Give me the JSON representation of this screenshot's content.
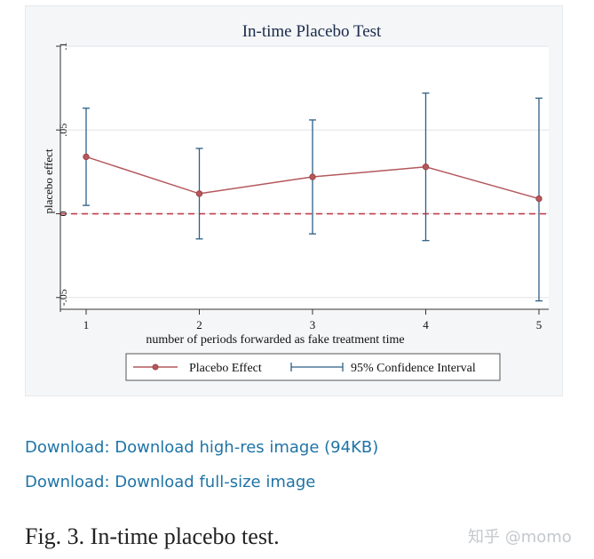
{
  "links": [
    {
      "label": "Download: Download high-res image (94KB)"
    },
    {
      "label": "Download: Download full-size image"
    }
  ],
  "caption": "Fig. 3. In-time placebo test.",
  "watermark": "知乎 @momo",
  "colors": {
    "line": "#b4585c",
    "ci": "#2c5f86",
    "zero_line": "#c43d4f",
    "link": "#1f74a6"
  },
  "chart_data": {
    "type": "line",
    "title": "In-time Placebo Test",
    "xlabel": "number of periods forwarded as fake treatment time",
    "ylabel": "placebo effect",
    "x": [
      1,
      2,
      3,
      4,
      5
    ],
    "x_tick_labels": [
      "1",
      "2",
      "3",
      "4",
      "5"
    ],
    "y_ticks": [
      -0.05,
      0,
      0.05,
      0.1
    ],
    "y_tick_labels": [
      "-.05",
      "0",
      ".05",
      ".1"
    ],
    "ylim": [
      -0.057,
      0.1
    ],
    "xlim": [
      1,
      5
    ],
    "grid": true,
    "reference_line": 0,
    "series": [
      {
        "name": "Placebo Effect",
        "values": [
          0.034,
          0.012,
          0.022,
          0.028,
          0.009
        ]
      },
      {
        "name": "95% Confidence Interval",
        "lower": [
          0.005,
          -0.015,
          -0.012,
          -0.016,
          -0.052
        ],
        "upper": [
          0.063,
          0.039,
          0.056,
          0.072,
          0.069
        ]
      }
    ],
    "legend_position": "bottom"
  }
}
